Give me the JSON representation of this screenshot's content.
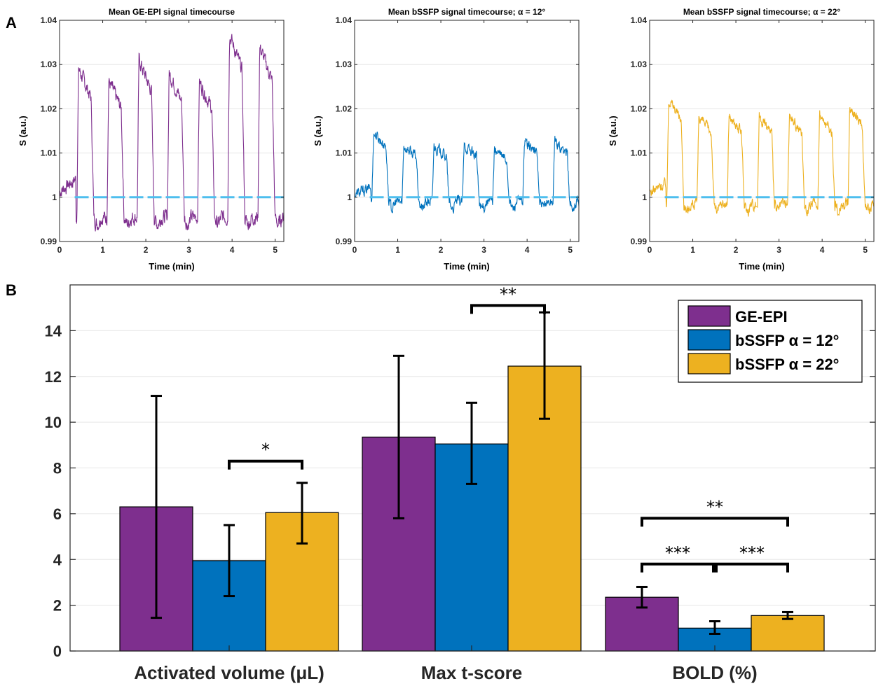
{
  "panel_labels": {
    "a": "A",
    "b": "B"
  },
  "chart_data": [
    {
      "type": "line",
      "panel": "A",
      "title": "Mean GE-EPI signal timecourse",
      "xlabel": "Time (min)",
      "ylabel": "S (a.u.)",
      "xlim": [
        0,
        5.2
      ],
      "ylim": [
        0.99,
        1.04
      ],
      "xticks": [
        "0",
        "1",
        "2",
        "3",
        "4",
        "5"
      ],
      "yticks": [
        "0.99",
        "1",
        "1.01",
        "1.02",
        "1.03",
        "1.04"
      ],
      "color": "#7E2F8E",
      "reference_color": "#4DBEEE",
      "block_on_min": [
        0.4,
        1.1,
        1.8,
        2.5,
        3.2,
        3.9,
        4.6
      ],
      "block_peak": [
        1.03,
        1.027,
        1.032,
        1.029,
        1.027,
        1.038,
        1.035
      ],
      "baseline": 0.9955,
      "series": [
        {
          "name": "Mean signal",
          "description": "block-design timecourse (on-blocks shown by block_on_min / block_peak)"
        },
        {
          "name": "Reference",
          "x": [
            0.35,
            5.2
          ],
          "values": [
            1.0,
            1.0
          ],
          "style": "dashed"
        }
      ]
    },
    {
      "type": "line",
      "panel": "A",
      "title": "Mean bSSFP signal timecourse; α = 12°",
      "xlabel": "Time (min)",
      "ylabel": "S (a.u.)",
      "xlim": [
        0,
        5.2
      ],
      "ylim": [
        0.99,
        1.04
      ],
      "xticks": [
        "0",
        "1",
        "2",
        "3",
        "4",
        "5"
      ],
      "yticks": [
        "0.99",
        "1",
        "1.01",
        "1.02",
        "1.03",
        "1.04"
      ],
      "color": "#0072BD",
      "reference_color": "#4DBEEE",
      "block_on_min": [
        0.4,
        1.1,
        1.8,
        2.5,
        3.2,
        3.9,
        4.6
      ],
      "block_peak": [
        1.015,
        1.012,
        1.012,
        1.012,
        1.011,
        1.013,
        1.013
      ],
      "baseline": 0.999,
      "series": [
        {
          "name": "Mean signal",
          "description": "block-design timecourse (on-blocks shown by block_on_min / block_peak)"
        },
        {
          "name": "Reference",
          "x": [
            0.35,
            5.2
          ],
          "values": [
            1.0,
            1.0
          ],
          "style": "dashed"
        }
      ]
    },
    {
      "type": "line",
      "panel": "A",
      "title": "Mean bSSFP signal timecourse; α = 22°",
      "xlabel": "Time (min)",
      "ylabel": "S (a.u.)",
      "xlim": [
        0,
        5.2
      ],
      "ylim": [
        0.99,
        1.04
      ],
      "xticks": [
        "0",
        "1",
        "2",
        "3",
        "4",
        "5"
      ],
      "yticks": [
        "0.99",
        "1",
        "1.01",
        "1.02",
        "1.03",
        "1.04"
      ],
      "color": "#EDB120",
      "reference_color": "#4DBEEE",
      "block_on_min": [
        0.4,
        1.1,
        1.8,
        2.5,
        3.2,
        3.9,
        4.6
      ],
      "block_peak": [
        1.023,
        1.019,
        1.019,
        1.019,
        1.019,
        1.019,
        1.021
      ],
      "baseline": 0.9985,
      "series": [
        {
          "name": "Mean signal",
          "description": "block-design timecourse (on-blocks shown by block_on_min / block_peak)"
        },
        {
          "name": "Reference",
          "x": [
            0.35,
            5.2
          ],
          "values": [
            1.0,
            1.0
          ],
          "style": "dashed"
        }
      ]
    },
    {
      "type": "bar",
      "panel": "B",
      "categories": [
        "Activated volume (μL)",
        "Max t-score",
        "BOLD (%)"
      ],
      "ylim": [
        0,
        16
      ],
      "yticks": [
        "0",
        "2",
        "4",
        "6",
        "8",
        "10",
        "12",
        "14"
      ],
      "legend_position": "top-right",
      "series": [
        {
          "name": "GE-EPI",
          "color": "#7E2F8E",
          "values": [
            6.3,
            9.35,
            2.35
          ],
          "err_low": [
            1.45,
            5.8,
            1.9
          ],
          "err_high": [
            11.15,
            12.9,
            2.8
          ]
        },
        {
          "name": "bSSFP α = 12°",
          "color": "#0072BD",
          "values": [
            3.95,
            9.05,
            1.0
          ],
          "err_low": [
            2.4,
            7.3,
            0.75
          ],
          "err_high": [
            5.5,
            10.85,
            1.3
          ]
        },
        {
          "name": "bSSFP α = 22°",
          "color": "#EDB120",
          "values": [
            6.05,
            12.45,
            1.55
          ],
          "err_low": [
            4.7,
            10.15,
            1.4
          ],
          "err_high": [
            7.35,
            14.8,
            1.7
          ]
        }
      ],
      "significance": [
        {
          "category": 0,
          "from_series": 1,
          "to_series": 2,
          "y": 8.3,
          "label": "*"
        },
        {
          "category": 1,
          "from_series": 1,
          "to_series": 2,
          "y": 15.1,
          "label": "**"
        },
        {
          "category": 2,
          "from_series": 0,
          "to_series": 2,
          "y": 5.8,
          "label": "**"
        },
        {
          "category": 2,
          "from_series": 0,
          "to_series": 1,
          "y": 3.8,
          "label": "***"
        },
        {
          "category": 2,
          "from_series": 1,
          "to_series": 2,
          "y": 3.8,
          "label": "***"
        }
      ]
    }
  ]
}
